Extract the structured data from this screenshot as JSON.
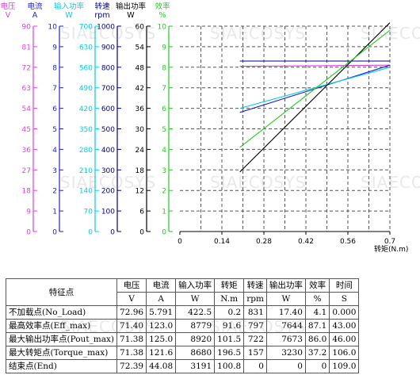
{
  "chart_data": {
    "type": "line",
    "xlabel": "转矩(N.m)",
    "x_ticks": [
      "0",
      "0.14",
      "0.28",
      "0.42",
      "0.56",
      "0.7"
    ],
    "xlim": [
      0,
      0.7
    ],
    "axes": [
      {
        "key": "voltage",
        "name": "电压",
        "unit": "V",
        "color": "#e040e0",
        "range": [
          0,
          90
        ],
        "ticks": [
          "0",
          "9",
          "18",
          "27",
          "36",
          "45",
          "54",
          "63",
          "72",
          "81",
          "90"
        ]
      },
      {
        "key": "current",
        "name": "电流",
        "unit": "A",
        "color": "#2222cc",
        "range": [
          0,
          10
        ],
        "ticks": [
          "0",
          "1",
          "2",
          "3",
          "4",
          "5",
          "6",
          "7",
          "8",
          "9",
          "10"
        ]
      },
      {
        "key": "input_power",
        "name": "输入功率",
        "unit": "W",
        "color": "#00d0e0",
        "range": [
          0,
          700
        ],
        "ticks": [
          "0",
          "70",
          "140",
          "210",
          "280",
          "350",
          "420",
          "490",
          "560",
          "630",
          "700"
        ]
      },
      {
        "key": "speed",
        "name": "转速",
        "unit": "rpm",
        "color": "#000080",
        "range": [
          0,
          1000
        ],
        "ticks": [
          "0",
          "100",
          "200",
          "300",
          "400",
          "500",
          "600",
          "700",
          "800",
          "900",
          "1000"
        ]
      },
      {
        "key": "output_power",
        "name": "输出功率",
        "unit": "W",
        "color": "#000000",
        "range": [
          0,
          60
        ],
        "ticks": [
          "0",
          "6",
          "12",
          "18",
          "24",
          "30",
          "36",
          "42",
          "48",
          "54",
          "60"
        ]
      },
      {
        "key": "efficiency",
        "name": "效率",
        "unit": "%",
        "color": "#22cc22",
        "range": [
          0,
          10
        ],
        "ticks": [
          "0",
          "1",
          "2",
          "3",
          "4",
          "5",
          "6",
          "7",
          "8",
          "9",
          "10"
        ]
      }
    ],
    "series": [
      {
        "key": "voltage",
        "color": "#e040e0",
        "x": [
          0.2,
          0.7
        ],
        "y": [
          72.4,
          72.9
        ]
      },
      {
        "key": "current",
        "color": "#2222cc",
        "x": [
          0.2,
          0.7
        ],
        "y": [
          5.8,
          8.1
        ]
      },
      {
        "key": "input_power",
        "color": "#00d0e0",
        "x": [
          0.2,
          0.7
        ],
        "y": [
          420,
          560
        ]
      },
      {
        "key": "speed",
        "color": "#000080",
        "x": [
          0.2,
          0.7
        ],
        "y": [
          830,
          830
        ]
      },
      {
        "key": "output_power",
        "color": "#000000",
        "x": [
          0.2,
          0.7
        ],
        "y": [
          17.4,
          61
        ]
      },
      {
        "key": "efficiency",
        "color": "#22cc22",
        "x": [
          0.2,
          0.7
        ],
        "y": [
          4.1,
          9.8
        ]
      }
    ]
  },
  "table": {
    "title": "特征点",
    "headers": [
      "电压",
      "电流",
      "输入功率",
      "转矩",
      "转速",
      "输出功率",
      "效率",
      "时间"
    ],
    "units": [
      "V",
      "A",
      "W",
      "N.m",
      "rpm",
      "W",
      "%",
      "S"
    ],
    "rows": [
      {
        "label": "不加载点(No_Load)",
        "values": [
          "72.96",
          "5.791",
          "422.5",
          "0.2",
          "831",
          "17.40",
          "4.1",
          "0.000"
        ]
      },
      {
        "label": "最高效率点(Eff_max)",
        "values": [
          "71.40",
          "123.0",
          "8779",
          "91.6",
          "797",
          "7644",
          "87.1",
          "43.00"
        ]
      },
      {
        "label": "最大输出功率点(Pout_max)",
        "values": [
          "71.38",
          "125.0",
          "8920",
          "101.5",
          "722",
          "7673",
          "86.0",
          "46.00"
        ]
      },
      {
        "label": "最大转矩点(Torque_max)",
        "values": [
          "71.38",
          "121.6",
          "8680",
          "196.5",
          "157",
          "3230",
          "37.2",
          "106.0"
        ]
      },
      {
        "label": "结束点(End)",
        "values": [
          "72.39",
          "44.08",
          "3191",
          "100.8",
          "0",
          "0",
          "0",
          "109.0"
        ]
      }
    ]
  },
  "watermark": "SIAECOSYS"
}
